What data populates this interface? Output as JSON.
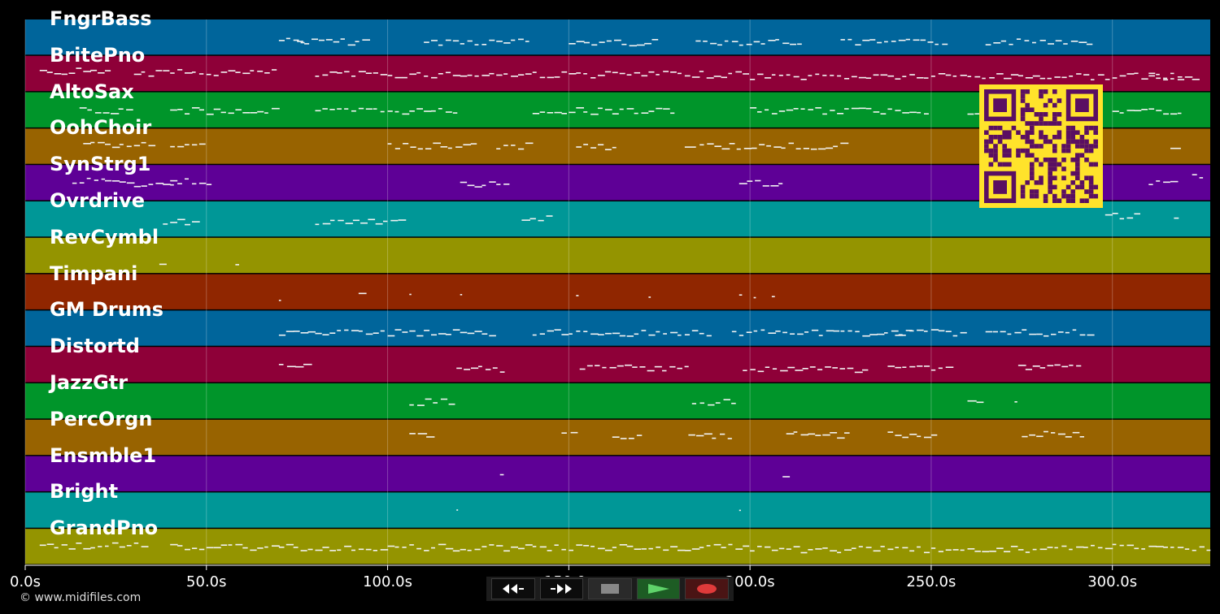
{
  "tracks": [
    {
      "name": "FngrBass",
      "color": "#00659b",
      "dots": [
        [
          70,
          0.55,
          8
        ],
        [
          75,
          0.6,
          20
        ],
        [
          110,
          0.6,
          30
        ],
        [
          150,
          0.62,
          25
        ],
        [
          185,
          0.6,
          30
        ],
        [
          225,
          0.62,
          30
        ],
        [
          265,
          0.6,
          15
        ],
        [
          280,
          0.58,
          15
        ]
      ]
    },
    {
      "name": "BritePno",
      "color": "#8e0038",
      "dots": [
        [
          4,
          0.4,
          20
        ],
        [
          30,
          0.45,
          40
        ],
        [
          80,
          0.5,
          60
        ],
        [
          140,
          0.5,
          60
        ],
        [
          200,
          0.55,
          60
        ],
        [
          260,
          0.55,
          60
        ],
        [
          310,
          0.6,
          14
        ]
      ]
    },
    {
      "name": "AltoSax",
      "color": "#00952a",
      "dots": [
        [
          15,
          0.5,
          15
        ],
        [
          40,
          0.5,
          30
        ],
        [
          80,
          0.5,
          40
        ],
        [
          140,
          0.5,
          40
        ],
        [
          200,
          0.5,
          50
        ],
        [
          260,
          0.5,
          30
        ],
        [
          300,
          0.5,
          20
        ]
      ]
    },
    {
      "name": "OohChoir",
      "color": "#986300",
      "dots": [
        [
          16,
          0.45,
          20
        ],
        [
          40,
          0.47,
          10
        ],
        [
          100,
          0.45,
          25
        ],
        [
          130,
          0.47,
          10
        ],
        [
          152,
          0.48,
          12
        ],
        [
          182,
          0.47,
          45
        ],
        [
          275,
          0.45,
          6
        ],
        [
          316,
          0.5,
          3
        ]
      ]
    },
    {
      "name": "SynStrg1",
      "color": "#5e0096",
      "dots": [
        [
          13,
          0.4,
          10
        ],
        [
          22,
          0.5,
          20
        ],
        [
          40,
          0.45,
          12
        ],
        [
          120,
          0.5,
          14
        ],
        [
          197,
          0.5,
          13
        ],
        [
          310,
          0.5,
          8
        ],
        [
          322,
          0.3,
          4
        ]
      ]
    },
    {
      "name": "Ovrdrive",
      "color": "#009797",
      "dots": [
        [
          38,
          0.55,
          10
        ],
        [
          80,
          0.55,
          25
        ],
        [
          137,
          0.45,
          9
        ],
        [
          298,
          0.4,
          10
        ],
        [
          317,
          0.5,
          2
        ]
      ]
    },
    {
      "name": "RevCymbl",
      "color": "#949400",
      "dots": [
        [
          37,
          0.75,
          2
        ],
        [
          58,
          0.75,
          2
        ]
      ]
    },
    {
      "name": "Timpani",
      "color": "#902600",
      "dots": [
        [
          70,
          0.7,
          1
        ],
        [
          92,
          0.55,
          2
        ],
        [
          106,
          0.6,
          1
        ],
        [
          120,
          0.6,
          1
        ],
        [
          152,
          0.65,
          1
        ],
        [
          172,
          0.55,
          1
        ],
        [
          197,
          0.55,
          1
        ],
        [
          201,
          0.55,
          1
        ],
        [
          206,
          0.55,
          1
        ]
      ]
    },
    {
      "name": "GM Drums",
      "color": "#00659b",
      "dots": [
        [
          70,
          0.6,
          30
        ],
        [
          100,
          0.6,
          30
        ],
        [
          140,
          0.6,
          50
        ],
        [
          195,
          0.6,
          50
        ],
        [
          240,
          0.6,
          20
        ],
        [
          265,
          0.6,
          30
        ]
      ]
    },
    {
      "name": "Distortd",
      "color": "#8e0038",
      "dots": [
        [
          70,
          0.55,
          9
        ],
        [
          119,
          0.6,
          14
        ],
        [
          153,
          0.55,
          31
        ],
        [
          198,
          0.6,
          35
        ],
        [
          238,
          0.55,
          18
        ],
        [
          274,
          0.55,
          18
        ]
      ]
    },
    {
      "name": "JazzGtr",
      "color": "#00952a",
      "dots": [
        [
          106,
          0.5,
          13
        ],
        [
          184,
          0.5,
          13
        ],
        [
          260,
          0.45,
          5
        ],
        [
          273,
          0.5,
          1
        ]
      ]
    },
    {
      "name": "PercOrgn",
      "color": "#986300",
      "dots": [
        [
          106,
          0.45,
          7
        ],
        [
          148,
          0.4,
          5
        ],
        [
          162,
          0.5,
          9
        ],
        [
          183,
          0.45,
          13
        ],
        [
          210,
          0.4,
          18
        ],
        [
          238,
          0.4,
          14
        ],
        [
          275,
          0.4,
          18
        ]
      ]
    },
    {
      "name": "Ensmble1",
      "color": "#5e0096",
      "dots": [
        [
          131,
          0.5,
          2
        ],
        [
          209,
          0.5,
          2
        ]
      ]
    },
    {
      "name": "Bright",
      "color": "#009797",
      "dots": [
        [
          119,
          0.5,
          0.5
        ],
        [
          197,
          0.5,
          0.5
        ]
      ]
    },
    {
      "name": "GrandPno",
      "color": "#949400",
      "dots": [
        [
          4,
          0.45,
          30
        ],
        [
          40,
          0.5,
          80
        ],
        [
          120,
          0.5,
          80
        ],
        [
          200,
          0.55,
          80
        ],
        [
          280,
          0.5,
          48
        ]
      ]
    }
  ],
  "axis": {
    "unit": "s",
    "max": 327,
    "ticks": [
      {
        "value": 0,
        "label": "0.0s"
      },
      {
        "value": 50,
        "label": "50.0s"
      },
      {
        "value": 100,
        "label": "100.0s"
      },
      {
        "value": 150,
        "label": "150.0s"
      },
      {
        "value": 200,
        "label": "200.0s"
      },
      {
        "value": 250,
        "label": "250.0s"
      },
      {
        "value": 300,
        "label": "300.0s"
      }
    ]
  },
  "copyright": "© www.midifiles.com",
  "transport": {
    "rewind": "rewind-icon",
    "fast_forward": "fast-forward-icon",
    "stop": "stop-icon",
    "play": "play-icon",
    "record": "record-icon",
    "colors": {
      "stop": "#888888",
      "play": "#5fd36a",
      "record": "#e03a3a"
    }
  },
  "qr_code": {
    "colors": {
      "background": "#ffe32b",
      "module": "#5a0f62"
    }
  }
}
